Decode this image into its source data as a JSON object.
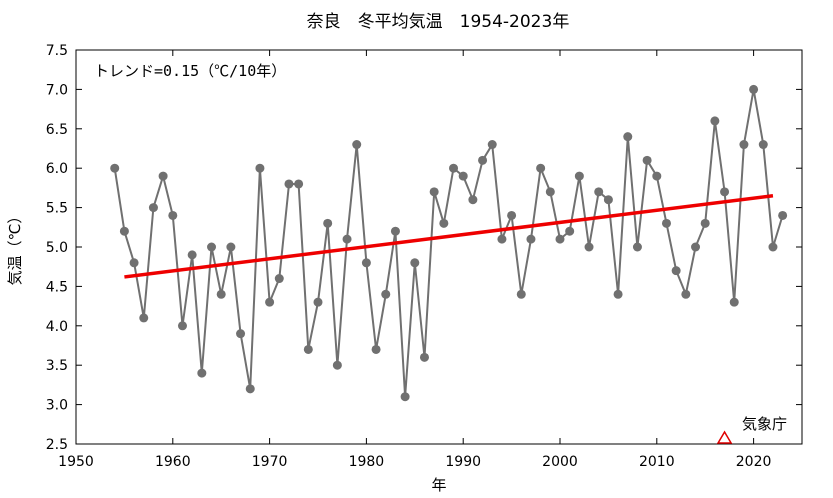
{
  "chart_data": {
    "type": "line",
    "title": "奈良　冬平均気温　1954-2023年",
    "xlabel": "年",
    "ylabel": "気温（℃）",
    "xlim": [
      1950,
      2025
    ],
    "ylim": [
      2.5,
      7.5
    ],
    "xticks": [
      1950,
      1960,
      1970,
      1980,
      1990,
      2000,
      2010,
      2020
    ],
    "yticks": [
      "2.5",
      "3.0",
      "3.5",
      "4.0",
      "4.5",
      "5.0",
      "5.5",
      "6.0",
      "6.5",
      "7.0",
      "7.5"
    ],
    "grid": false,
    "annotation": "トレンド=0.15（℃/10年）",
    "source": "気象庁",
    "source_marker_x": 2017,
    "series": [
      {
        "color": "#707070",
        "x": [
          1954,
          1955,
          1956,
          1957,
          1958,
          1959,
          1960,
          1961,
          1962,
          1963,
          1964,
          1965,
          1966,
          1967,
          1968,
          1969,
          1970,
          1971,
          1972,
          1973,
          1974,
          1975,
          1976,
          1977,
          1978,
          1979,
          1980,
          1981,
          1982,
          1983,
          1984,
          1985,
          1986,
          1987,
          1988,
          1989,
          1990,
          1991,
          1992,
          1993,
          1994,
          1995,
          1996,
          1997,
          1998,
          1999,
          2000,
          2001,
          2002,
          2003,
          2004,
          2005,
          2006,
          2007,
          2008,
          2009,
          2010,
          2011,
          2012,
          2013,
          2014,
          2015,
          2016,
          2017,
          2018,
          2019,
          2020,
          2021,
          2022,
          2023
        ],
        "values": [
          6.0,
          5.2,
          4.8,
          4.1,
          5.5,
          5.9,
          5.4,
          4.0,
          4.9,
          3.4,
          5.0,
          4.4,
          5.0,
          3.9,
          3.2,
          6.0,
          4.3,
          4.6,
          5.8,
          5.8,
          3.7,
          4.3,
          5.3,
          3.5,
          5.1,
          6.3,
          4.8,
          3.7,
          4.4,
          5.2,
          3.1,
          4.8,
          3.6,
          5.7,
          5.3,
          6.0,
          5.9,
          5.6,
          6.1,
          6.3,
          5.1,
          5.4,
          4.4,
          5.1,
          6.0,
          5.7,
          5.1,
          5.2,
          5.9,
          5.0,
          5.7,
          5.6,
          4.4,
          6.4,
          5.0,
          6.1,
          5.9,
          5.3,
          4.7,
          4.4,
          5.0,
          5.3,
          6.6,
          5.7,
          4.3,
          6.3,
          7.0,
          6.3,
          5.0,
          5.4
        ]
      }
    ],
    "trend": {
      "color": "#ee0000",
      "x": [
        1955,
        2022
      ],
      "values": [
        4.62,
        5.65
      ]
    }
  }
}
